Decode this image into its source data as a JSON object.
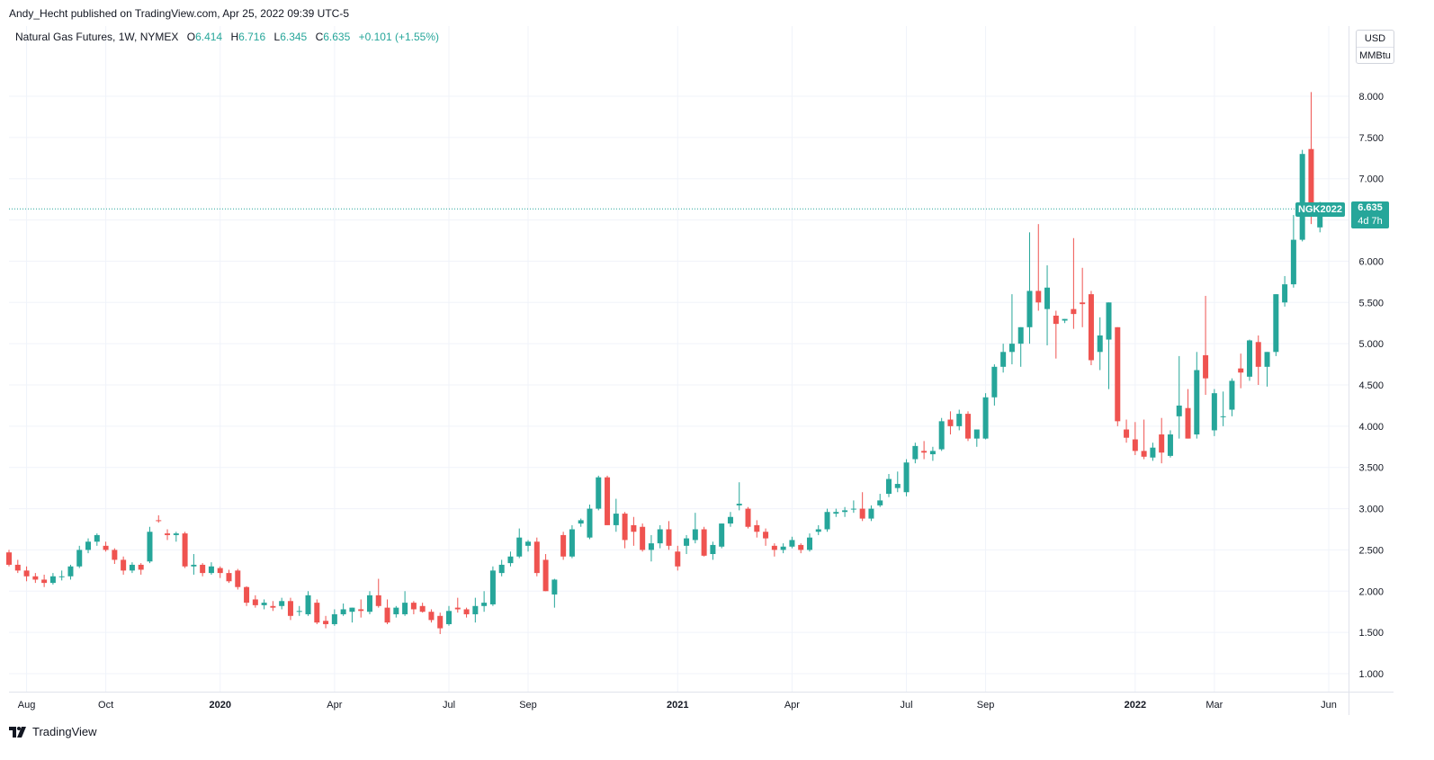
{
  "header": {
    "publisher": "Andy_Hecht published on TradingView.com, Apr 25, 2022 09:39 UTC-5"
  },
  "legend": {
    "symbol": "Natural Gas Futures, 1W, NYMEX",
    "open_label": "O",
    "open": "6.414",
    "high_label": "H",
    "high": "6.716",
    "low_label": "L",
    "low": "6.345",
    "close_label": "C",
    "close": "6.635",
    "change": "+0.101 (+1.55%)"
  },
  "currency": {
    "unit1": "USD",
    "unit2": "MMBtu"
  },
  "price_tag": {
    "symbol": "NGK2022",
    "price": "6.635",
    "countdown": "4d 7h"
  },
  "footer": {
    "brand": "TradingView"
  },
  "colors": {
    "up": "#26a69a",
    "down": "#ef5350",
    "grid": "#f0f3fa",
    "axis_text": "#131722"
  },
  "chart_data": {
    "type": "candlestick",
    "title": "Natural Gas Futures, 1W, NYMEX",
    "ylim": [
      0.75,
      8.4
    ],
    "y_ticks": [
      "1.000",
      "1.500",
      "2.000",
      "2.500",
      "3.000",
      "3.500",
      "4.000",
      "4.500",
      "5.000",
      "5.500",
      "6.000",
      "6.500",
      "7.000",
      "7.500",
      "8.000"
    ],
    "x_ticks": [
      {
        "label": "Aug",
        "week": 2,
        "bold": false
      },
      {
        "label": "Oct",
        "week": 11,
        "bold": false
      },
      {
        "label": "2020",
        "week": 24,
        "bold": true
      },
      {
        "label": "Apr",
        "week": 37,
        "bold": false
      },
      {
        "label": "Jul",
        "week": 50,
        "bold": false
      },
      {
        "label": "Sep",
        "week": 59,
        "bold": false
      },
      {
        "label": "2021",
        "week": 76,
        "bold": true
      },
      {
        "label": "Apr",
        "week": 89,
        "bold": false
      },
      {
        "label": "Jul",
        "week": 102,
        "bold": false
      },
      {
        "label": "Sep",
        "week": 111,
        "bold": false
      },
      {
        "label": "2022",
        "week": 128,
        "bold": true
      },
      {
        "label": "Mar",
        "week": 137,
        "bold": false
      },
      {
        "label": "Jun",
        "week": 150,
        "bold": false
      }
    ],
    "last_price": 6.635,
    "ohlc": [
      [
        2.47,
        2.5,
        2.3,
        2.32
      ],
      [
        2.32,
        2.38,
        2.22,
        2.25
      ],
      [
        2.25,
        2.3,
        2.12,
        2.18
      ],
      [
        2.18,
        2.22,
        2.1,
        2.14
      ],
      [
        2.14,
        2.2,
        2.05,
        2.1
      ],
      [
        2.1,
        2.22,
        2.08,
        2.18
      ],
      [
        2.18,
        2.25,
        2.13,
        2.18
      ],
      [
        2.18,
        2.32,
        2.14,
        2.3
      ],
      [
        2.3,
        2.55,
        2.28,
        2.5
      ],
      [
        2.5,
        2.64,
        2.46,
        2.6
      ],
      [
        2.6,
        2.7,
        2.55,
        2.68
      ],
      [
        2.55,
        2.6,
        2.48,
        2.5
      ],
      [
        2.5,
        2.52,
        2.33,
        2.38
      ],
      [
        2.38,
        2.42,
        2.2,
        2.25
      ],
      [
        2.25,
        2.35,
        2.22,
        2.32
      ],
      [
        2.32,
        2.34,
        2.2,
        2.26
      ],
      [
        2.36,
        2.78,
        2.34,
        2.72
      ],
      [
        2.86,
        2.92,
        2.83,
        2.85
      ],
      [
        2.7,
        2.75,
        2.62,
        2.68
      ],
      [
        2.68,
        2.72,
        2.6,
        2.7
      ],
      [
        2.7,
        2.72,
        2.28,
        2.3
      ],
      [
        2.3,
        2.45,
        2.2,
        2.32
      ],
      [
        2.32,
        2.34,
        2.18,
        2.22
      ],
      [
        2.22,
        2.35,
        2.2,
        2.3
      ],
      [
        2.28,
        2.3,
        2.16,
        2.22
      ],
      [
        2.22,
        2.26,
        2.1,
        2.12
      ],
      [
        2.25,
        2.27,
        2.02,
        2.05
      ],
      [
        2.05,
        2.06,
        1.82,
        1.86
      ],
      [
        1.9,
        1.95,
        1.8,
        1.83
      ],
      [
        1.83,
        1.9,
        1.78,
        1.86
      ],
      [
        1.82,
        1.88,
        1.76,
        1.8
      ],
      [
        1.82,
        1.92,
        1.78,
        1.88
      ],
      [
        1.88,
        1.92,
        1.65,
        1.7
      ],
      [
        1.75,
        1.82,
        1.7,
        1.76
      ],
      [
        1.72,
        2.0,
        1.7,
        1.95
      ],
      [
        1.86,
        1.9,
        1.6,
        1.62
      ],
      [
        1.64,
        1.7,
        1.55,
        1.6
      ],
      [
        1.6,
        1.78,
        1.58,
        1.72
      ],
      [
        1.72,
        1.85,
        1.7,
        1.78
      ],
      [
        1.75,
        1.8,
        1.62,
        1.8
      ],
      [
        1.78,
        1.9,
        1.68,
        1.76
      ],
      [
        1.75,
        2.0,
        1.72,
        1.95
      ],
      [
        1.95,
        2.15,
        1.8,
        1.82
      ],
      [
        1.8,
        1.9,
        1.6,
        1.62
      ],
      [
        1.72,
        1.82,
        1.68,
        1.8
      ],
      [
        1.72,
        2.0,
        1.7,
        1.86
      ],
      [
        1.86,
        1.88,
        1.72,
        1.78
      ],
      [
        1.82,
        1.86,
        1.74,
        1.75
      ],
      [
        1.75,
        1.78,
        1.62,
        1.65
      ],
      [
        1.7,
        1.74,
        1.48,
        1.55
      ],
      [
        1.6,
        1.82,
        1.58,
        1.76
      ],
      [
        1.8,
        1.92,
        1.74,
        1.78
      ],
      [
        1.78,
        1.8,
        1.68,
        1.72
      ],
      [
        1.72,
        1.92,
        1.62,
        1.82
      ],
      [
        1.82,
        2.0,
        1.75,
        1.86
      ],
      [
        1.84,
        2.3,
        1.82,
        2.25
      ],
      [
        2.22,
        2.38,
        2.18,
        2.32
      ],
      [
        2.34,
        2.48,
        2.3,
        2.42
      ],
      [
        2.42,
        2.76,
        2.4,
        2.65
      ],
      [
        2.55,
        2.62,
        2.48,
        2.6
      ],
      [
        2.6,
        2.65,
        2.18,
        2.22
      ],
      [
        2.38,
        2.45,
        2.0,
        2.0
      ],
      [
        1.96,
        2.15,
        1.8,
        2.14
      ],
      [
        2.68,
        2.72,
        2.38,
        2.42
      ],
      [
        2.42,
        2.8,
        2.4,
        2.75
      ],
      [
        2.82,
        2.88,
        2.78,
        2.86
      ],
      [
        2.65,
        3.05,
        2.63,
        3.0
      ],
      [
        3.0,
        3.4,
        2.98,
        3.38
      ],
      [
        3.38,
        3.4,
        2.8,
        2.8
      ],
      [
        2.8,
        3.12,
        2.72,
        2.94
      ],
      [
        2.94,
        2.96,
        2.52,
        2.62
      ],
      [
        2.8,
        2.9,
        2.55,
        2.72
      ],
      [
        2.78,
        2.82,
        2.48,
        2.5
      ],
      [
        2.5,
        2.68,
        2.36,
        2.58
      ],
      [
        2.58,
        2.8,
        2.52,
        2.75
      ],
      [
        2.75,
        2.85,
        2.5,
        2.55
      ],
      [
        2.48,
        2.55,
        2.25,
        2.3
      ],
      [
        2.55,
        2.68,
        2.45,
        2.64
      ],
      [
        2.62,
        2.95,
        2.58,
        2.75
      ],
      [
        2.75,
        2.78,
        2.42,
        2.43
      ],
      [
        2.45,
        2.6,
        2.38,
        2.56
      ],
      [
        2.54,
        2.82,
        2.52,
        2.82
      ],
      [
        2.82,
        2.96,
        2.78,
        2.9
      ],
      [
        3.04,
        3.32,
        2.98,
        3.06
      ],
      [
        3.0,
        3.02,
        2.76,
        2.78
      ],
      [
        2.8,
        2.86,
        2.65,
        2.72
      ],
      [
        2.72,
        2.76,
        2.55,
        2.64
      ],
      [
        2.55,
        2.58,
        2.42,
        2.5
      ],
      [
        2.5,
        2.58,
        2.46,
        2.54
      ],
      [
        2.54,
        2.66,
        2.52,
        2.62
      ],
      [
        2.56,
        2.58,
        2.46,
        2.5
      ],
      [
        2.5,
        2.7,
        2.48,
        2.65
      ],
      [
        2.72,
        2.8,
        2.68,
        2.75
      ],
      [
        2.75,
        3.0,
        2.72,
        2.96
      ],
      [
        2.94,
        3.0,
        2.9,
        2.96
      ],
      [
        2.96,
        3.02,
        2.9,
        2.98
      ],
      [
        3.0,
        3.1,
        2.95,
        3.0
      ],
      [
        3.0,
        3.2,
        2.85,
        2.88
      ],
      [
        2.88,
        3.04,
        2.85,
        3.0
      ],
      [
        3.04,
        3.18,
        3.02,
        3.1
      ],
      [
        3.18,
        3.42,
        3.14,
        3.36
      ],
      [
        3.25,
        3.45,
        3.2,
        3.3
      ],
      [
        3.2,
        3.6,
        3.15,
        3.56
      ],
      [
        3.6,
        3.8,
        3.55,
        3.76
      ],
      [
        3.7,
        3.82,
        3.6,
        3.68
      ],
      [
        3.66,
        3.75,
        3.58,
        3.7
      ],
      [
        3.72,
        4.1,
        3.7,
        4.06
      ],
      [
        4.08,
        4.18,
        3.9,
        4.0
      ],
      [
        4.0,
        4.2,
        3.95,
        4.15
      ],
      [
        4.15,
        4.18,
        3.82,
        3.85
      ],
      [
        3.85,
        3.92,
        3.75,
        3.96
      ],
      [
        3.85,
        4.4,
        3.84,
        4.35
      ],
      [
        4.35,
        4.75,
        4.25,
        4.72
      ],
      [
        4.72,
        5.0,
        4.65,
        4.9
      ],
      [
        4.9,
        5.6,
        4.75,
        5.0
      ],
      [
        5.0,
        5.2,
        4.72,
        5.2
      ],
      [
        5.2,
        6.35,
        5.0,
        5.64
      ],
      [
        5.64,
        6.45,
        5.4,
        5.5
      ],
      [
        5.42,
        5.95,
        4.98,
        5.68
      ],
      [
        5.34,
        5.4,
        4.82,
        5.24
      ],
      [
        5.28,
        5.3,
        5.25,
        5.3
      ],
      [
        5.42,
        6.28,
        5.18,
        5.36
      ],
      [
        5.5,
        5.92,
        5.2,
        5.48
      ],
      [
        5.6,
        5.64,
        4.74,
        4.8
      ],
      [
        4.9,
        5.32,
        4.68,
        5.1
      ],
      [
        5.05,
        5.5,
        4.45,
        5.5
      ],
      [
        5.2,
        5.2,
        4.0,
        4.06
      ],
      [
        3.96,
        4.08,
        3.8,
        3.86
      ],
      [
        3.84,
        4.05,
        3.65,
        3.7
      ],
      [
        3.7,
        4.08,
        3.6,
        3.63
      ],
      [
        3.62,
        3.8,
        3.58,
        3.74
      ],
      [
        3.9,
        4.1,
        3.55,
        3.68
      ],
      [
        3.64,
        3.95,
        3.62,
        3.9
      ],
      [
        4.12,
        4.85,
        3.85,
        4.25
      ],
      [
        4.22,
        4.45,
        3.85,
        3.85
      ],
      [
        3.9,
        4.9,
        3.85,
        4.68
      ],
      [
        4.86,
        5.58,
        4.38,
        4.58
      ],
      [
        3.95,
        4.45,
        3.88,
        4.4
      ],
      [
        4.12,
        4.42,
        4.0,
        4.12
      ],
      [
        4.2,
        4.58,
        4.12,
        4.55
      ],
      [
        4.7,
        4.88,
        4.46,
        4.65
      ],
      [
        4.6,
        5.05,
        4.55,
        5.04
      ],
      [
        5.02,
        5.1,
        4.5,
        4.72
      ],
      [
        4.72,
        4.9,
        4.48,
        4.9
      ],
      [
        4.9,
        5.6,
        4.85,
        5.6
      ],
      [
        5.5,
        5.82,
        5.45,
        5.72
      ],
      [
        5.72,
        6.56,
        5.68,
        6.26
      ],
      [
        6.26,
        7.35,
        6.24,
        7.3
      ],
      [
        7.36,
        8.05,
        6.45,
        6.54
      ],
      [
        6.41,
        6.72,
        6.35,
        6.64
      ]
    ]
  }
}
